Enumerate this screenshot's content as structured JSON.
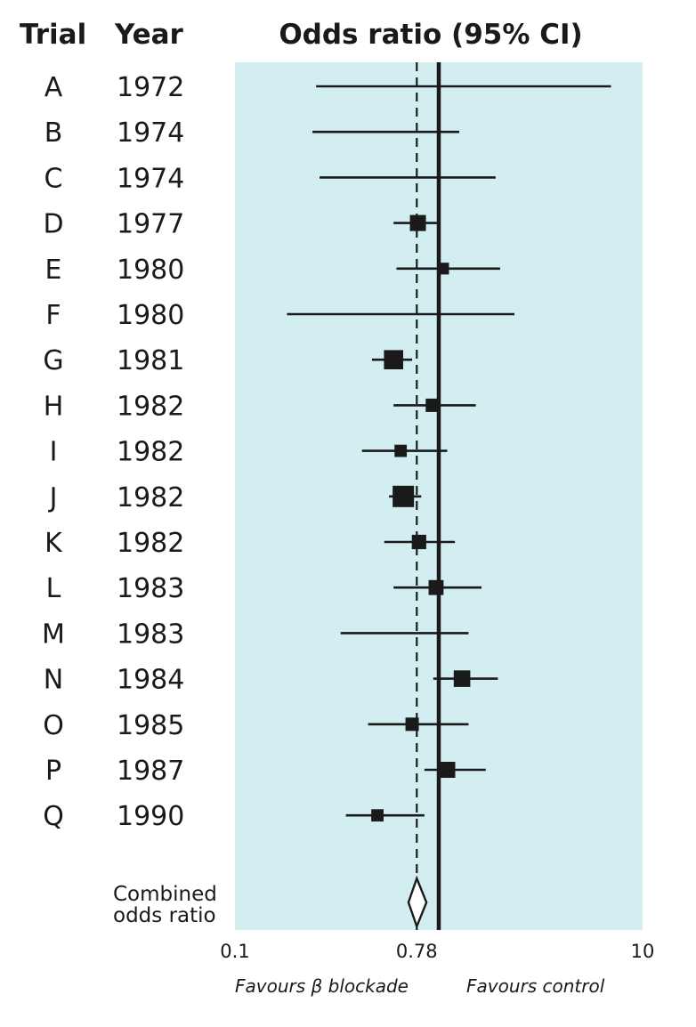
{
  "chart_data": {
    "type": "forest",
    "title": "Odds ratio (95% CI)",
    "columns": {
      "trial": "Trial",
      "year": "Year"
    },
    "scale": "log",
    "xlim": [
      0.1,
      10
    ],
    "ticks": [
      "0.1",
      "0.78",
      "10"
    ],
    "reference_line": 1,
    "combined_line": 0.78,
    "favours_left": "Favours β blockade",
    "favours_right": "Favours control",
    "trials": [
      {
        "trial": "A",
        "year": "1972",
        "or": null,
        "lo": 0.25,
        "hi": 7.0,
        "weight": 0
      },
      {
        "trial": "B",
        "year": "1974",
        "or": null,
        "lo": 0.24,
        "hi": 1.26,
        "weight": 0
      },
      {
        "trial": "C",
        "year": "1974",
        "or": null,
        "lo": 0.26,
        "hi": 1.9,
        "weight": 0
      },
      {
        "trial": "D",
        "year": "1977",
        "or": 0.79,
        "lo": 0.6,
        "hi": 0.98,
        "weight": 2.0
      },
      {
        "trial": "E",
        "year": "1980",
        "or": 1.05,
        "lo": 0.62,
        "hi": 2.0,
        "weight": 1.2
      },
      {
        "trial": "F",
        "year": "1980",
        "or": null,
        "lo": 0.18,
        "hi": 2.35,
        "weight": 0
      },
      {
        "trial": "G",
        "year": "1981",
        "or": 0.6,
        "lo": 0.47,
        "hi": 0.74,
        "weight": 2.6
      },
      {
        "trial": "H",
        "year": "1982",
        "or": 0.93,
        "lo": 0.6,
        "hi": 1.52,
        "weight": 1.5
      },
      {
        "trial": "I",
        "year": "1982",
        "or": 0.65,
        "lo": 0.42,
        "hi": 1.1,
        "weight": 1.3
      },
      {
        "trial": "J",
        "year": "1982",
        "or": 0.67,
        "lo": 0.57,
        "hi": 0.82,
        "weight": 3.0
      },
      {
        "trial": "K",
        "year": "1982",
        "or": 0.8,
        "lo": 0.54,
        "hi": 1.2,
        "weight": 1.7
      },
      {
        "trial": "L",
        "year": "1983",
        "or": 0.97,
        "lo": 0.6,
        "hi": 1.62,
        "weight": 1.8
      },
      {
        "trial": "M",
        "year": "1983",
        "or": null,
        "lo": 0.33,
        "hi": 1.4,
        "weight": 0
      },
      {
        "trial": "N",
        "year": "1984",
        "or": 1.3,
        "lo": 0.94,
        "hi": 1.95,
        "weight": 2.1
      },
      {
        "trial": "O",
        "year": "1985",
        "or": 0.74,
        "lo": 0.45,
        "hi": 1.4,
        "weight": 1.5
      },
      {
        "trial": "P",
        "year": "1987",
        "or": 1.1,
        "lo": 0.85,
        "hi": 1.7,
        "weight": 2.0
      },
      {
        "trial": "Q",
        "year": "1990",
        "or": 0.5,
        "lo": 0.35,
        "hi": 0.85,
        "weight": 1.3
      }
    ],
    "combined": {
      "label_line1": "Combined",
      "label_line2": "odds ratio",
      "or": 0.78,
      "lo": 0.71,
      "hi": 0.87
    }
  },
  "colors": {
    "panel": "#d2eef1",
    "ink": "#1a1a1a",
    "diamond_fill": "#ffffff"
  }
}
